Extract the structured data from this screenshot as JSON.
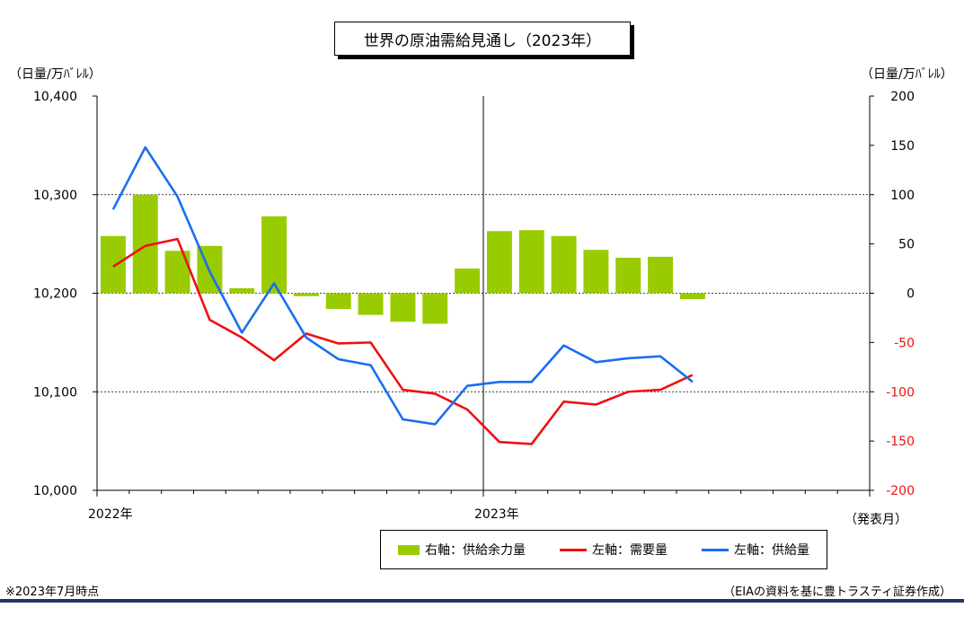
{
  "title": "世界の原油需給見通し（2023年）",
  "left_unit": "（日量/万ﾊﾞﾚﾙ）",
  "right_unit": "（日量/万ﾊﾞﾚﾙ）",
  "x_axis_note": "（発表月）",
  "footnote_left": "※2023年7月時点",
  "footnote_right": "（EIAの資料を基に豊トラスティ証券作成）",
  "legend": {
    "surplus": "右軸：供給余力量",
    "demand": "左軸：需要量",
    "supply": "左軸：供給量"
  },
  "colors": {
    "surplus": "#99cc00",
    "demand": "#ee1111",
    "supply": "#1a6ef0",
    "rule": "#1f3864"
  },
  "chart_data": {
    "type": "bar",
    "title": "世界の原油需給見通し（2023年）",
    "x_tick_labels": [
      "2022年",
      "2023年"
    ],
    "months": [
      "2022-01",
      "2022-02",
      "2022-03",
      "2022-04",
      "2022-05",
      "2022-06",
      "2022-07",
      "2022-08",
      "2022-09",
      "2022-10",
      "2022-11",
      "2022-12",
      "2023-01",
      "2023-02",
      "2023-03",
      "2023-04",
      "2023-05",
      "2023-06",
      "2023-07"
    ],
    "left_axis": {
      "ylim": [
        10000,
        10400
      ],
      "ticks": [
        "10,000",
        "10,100",
        "10,200",
        "10,300",
        "10,400"
      ],
      "tick_values": [
        10000,
        10100,
        10200,
        10300,
        10400
      ]
    },
    "right_axis": {
      "ylim": [
        -200,
        200
      ],
      "ticks": [
        "-200",
        "-150",
        "-100",
        "-50",
        "0",
        "50",
        "100",
        "150",
        "200"
      ],
      "tick_values": [
        -200,
        -150,
        -100,
        -50,
        0,
        50,
        100,
        150,
        200
      ]
    },
    "grid": true,
    "series": [
      {
        "name": "右軸：供給余力量",
        "type": "bar",
        "axis": "right",
        "values": [
          58,
          100,
          43,
          48,
          5,
          78,
          -3,
          -16,
          -22,
          -29,
          -31,
          25,
          63,
          64,
          58,
          44,
          36,
          37,
          -6
        ]
      },
      {
        "name": "左軸：需要量",
        "type": "line",
        "axis": "left",
        "values": [
          10227,
          10248,
          10255,
          10173,
          10155,
          10132,
          10159,
          10149,
          10150,
          10102,
          10098,
          10082,
          10049,
          10047,
          10090,
          10087,
          10100,
          10102,
          10117
        ]
      },
      {
        "name": "左軸：供給量",
        "type": "line",
        "axis": "left",
        "values": [
          10285,
          10348,
          10298,
          10222,
          10160,
          10210,
          10155,
          10133,
          10127,
          10072,
          10067,
          10106,
          10110,
          10110,
          10147,
          10130,
          10134,
          10136,
          10110
        ]
      }
    ]
  }
}
